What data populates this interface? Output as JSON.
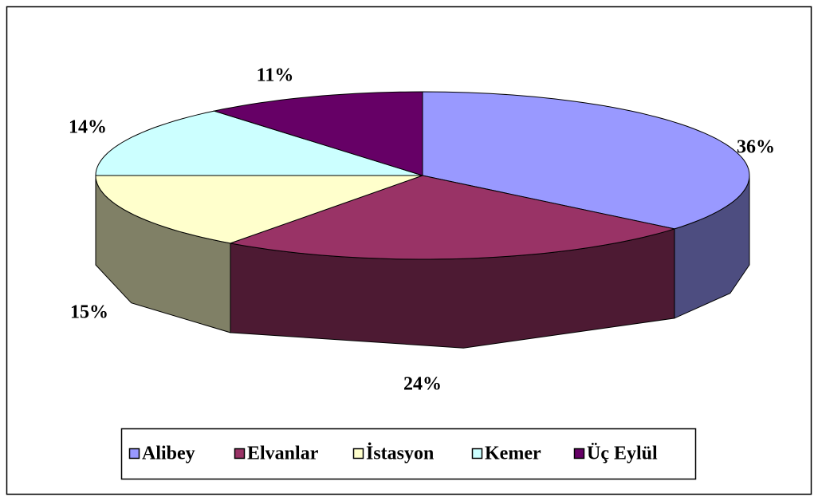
{
  "chart_data": {
    "type": "pie3d",
    "categories": [
      "Alibey",
      "Elvanlar",
      "İstasyon",
      "Kemer",
      "Üç Eylül"
    ],
    "values": [
      36,
      24,
      15,
      14,
      11
    ],
    "value_labels": [
      "36%",
      "24%",
      "15%",
      "14%",
      "11%"
    ],
    "colors": [
      "#9999ff",
      "#993366",
      "#ffffcc",
      "#ccffff",
      "#660066"
    ],
    "legend": "bottom"
  }
}
